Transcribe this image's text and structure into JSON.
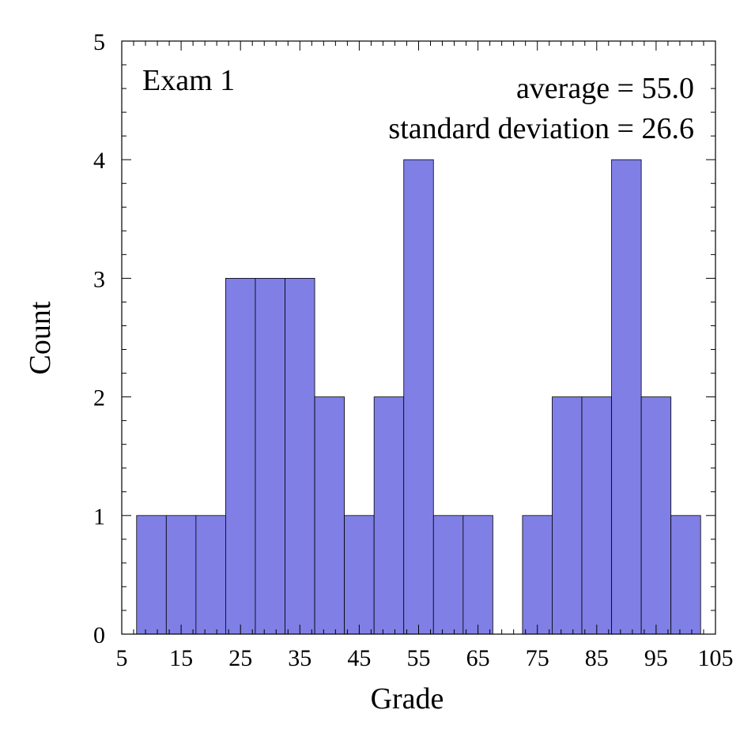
{
  "chart_data": {
    "type": "bar",
    "subtype": "histogram",
    "title": "Exam 1",
    "xlabel": "Grade",
    "ylabel": "Count",
    "xlim": [
      5,
      105
    ],
    "ylim": [
      0,
      5
    ],
    "bin_width": 5,
    "x_ticks": [
      5,
      15,
      25,
      35,
      45,
      55,
      65,
      75,
      85,
      95,
      105
    ],
    "y_ticks": [
      0,
      1,
      2,
      3,
      4,
      5
    ],
    "bins": [
      {
        "start": 7.5,
        "end": 12.5,
        "count": 1
      },
      {
        "start": 12.5,
        "end": 17.5,
        "count": 1
      },
      {
        "start": 17.5,
        "end": 22.5,
        "count": 1
      },
      {
        "start": 22.5,
        "end": 27.5,
        "count": 3
      },
      {
        "start": 27.5,
        "end": 32.5,
        "count": 3
      },
      {
        "start": 32.5,
        "end": 37.5,
        "count": 3
      },
      {
        "start": 37.5,
        "end": 42.5,
        "count": 2
      },
      {
        "start": 42.5,
        "end": 47.5,
        "count": 1
      },
      {
        "start": 47.5,
        "end": 52.5,
        "count": 2
      },
      {
        "start": 52.5,
        "end": 57.5,
        "count": 4
      },
      {
        "start": 57.5,
        "end": 62.5,
        "count": 1
      },
      {
        "start": 62.5,
        "end": 67.5,
        "count": 1
      },
      {
        "start": 67.5,
        "end": 72.5,
        "count": 0
      },
      {
        "start": 72.5,
        "end": 77.5,
        "count": 1
      },
      {
        "start": 77.5,
        "end": 82.5,
        "count": 2
      },
      {
        "start": 82.5,
        "end": 87.5,
        "count": 2
      },
      {
        "start": 87.5,
        "end": 92.5,
        "count": 4
      },
      {
        "start": 92.5,
        "end": 97.5,
        "count": 2
      },
      {
        "start": 97.5,
        "end": 102.5,
        "count": 1
      }
    ],
    "annotations": {
      "average": "average = 55.0",
      "std": "standard deviation = 26.6"
    },
    "grid": false,
    "bar_color": "#7f7fe6",
    "bar_edge_color": "#000000"
  }
}
